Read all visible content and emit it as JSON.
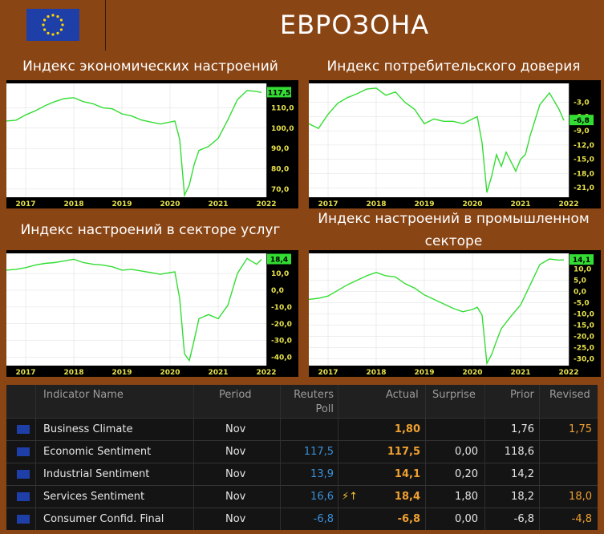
{
  "header": {
    "title": "ЕВРОЗОНА",
    "flag_icon": "eu-flag-icon",
    "flag_color": "#1f3fa8",
    "star_color": "#ffd700"
  },
  "panels": [
    {
      "title": "Индекс экономических настроений",
      "last_value": "117,5",
      "ticks": [
        "110,0",
        "100,0",
        "90,0",
        "80,0",
        "70,0"
      ]
    },
    {
      "title": "Индекс потребительского доверия",
      "last_value": "-6,8",
      "ticks": [
        "-3,0",
        "-6,0",
        "-9,0",
        "-12,0",
        "-15,0",
        "-18,0",
        "-21,0"
      ]
    },
    {
      "title": "Индекс настроений в секторе услуг",
      "last_value": "18,4",
      "ticks": [
        "10,0",
        "0,0",
        "-10,0",
        "-20,0",
        "-30,0",
        "-40,0"
      ]
    },
    {
      "title": "Индекс настроений в промышленном секторе",
      "last_value": "14,1",
      "ticks": [
        "10,0",
        "5,0",
        "0,0",
        "-5,0",
        "-10,0",
        "-15,0",
        "-20,0",
        "-25,0",
        "-30,0"
      ]
    }
  ],
  "chart_data": [
    {
      "type": "line",
      "title": "Индекс экономических настроений",
      "x": [
        2016.6,
        2016.8,
        2017.0,
        2017.2,
        2017.4,
        2017.6,
        2017.8,
        2018.0,
        2018.2,
        2018.4,
        2018.6,
        2018.8,
        2019.0,
        2019.2,
        2019.4,
        2019.6,
        2019.8,
        2020.0,
        2020.1,
        2020.2,
        2020.3,
        2020.4,
        2020.5,
        2020.6,
        2020.8,
        2021.0,
        2021.2,
        2021.4,
        2021.6,
        2021.8,
        2021.9
      ],
      "y": [
        103.5,
        103.9,
        106.5,
        108.5,
        111.0,
        113.0,
        114.5,
        115.0,
        113.0,
        112.0,
        110.0,
        109.5,
        107.0,
        106.0,
        104.0,
        103.0,
        102.0,
        103.0,
        103.5,
        94.5,
        67.0,
        72.0,
        82.0,
        89.0,
        91.0,
        95.0,
        104.0,
        114.0,
        118.5,
        118.0,
        117.5
      ],
      "ylim": [
        66,
        122
      ],
      "xlim": [
        2016.6,
        2022.0
      ],
      "x_ticks": [
        2017,
        2018,
        2019,
        2020,
        2021,
        2022
      ]
    },
    {
      "type": "line",
      "title": "Индекс потребительского доверия",
      "x": [
        2016.6,
        2016.8,
        2017.0,
        2017.2,
        2017.4,
        2017.6,
        2017.8,
        2018.0,
        2018.2,
        2018.4,
        2018.6,
        2018.8,
        2019.0,
        2019.2,
        2019.4,
        2019.6,
        2019.8,
        2020.0,
        2020.1,
        2020.2,
        2020.3,
        2020.4,
        2020.5,
        2020.6,
        2020.7,
        2020.8,
        2020.9,
        2021.0,
        2021.1,
        2021.2,
        2021.4,
        2021.6,
        2021.8,
        2021.9
      ],
      "y": [
        -7.5,
        -8.5,
        -5.5,
        -3.2,
        -2.0,
        -1.2,
        -0.2,
        0.0,
        -1.5,
        -0.8,
        -3.0,
        -4.5,
        -7.5,
        -6.5,
        -7.0,
        -7.0,
        -7.5,
        -6.5,
        -6.0,
        -11.5,
        -22.0,
        -18.5,
        -14.0,
        -16.5,
        -13.5,
        -15.5,
        -17.5,
        -15.0,
        -14.0,
        -10.0,
        -3.5,
        -1.0,
        -4.5,
        -6.8
      ],
      "ylim": [
        -23,
        1
      ],
      "xlim": [
        2016.6,
        2022.0
      ],
      "x_ticks": [
        2017,
        2018,
        2019,
        2020,
        2021,
        2022
      ]
    },
    {
      "type": "line",
      "title": "Индекс настроений в секторе услуг",
      "x": [
        2016.6,
        2016.8,
        2017.0,
        2017.2,
        2017.4,
        2017.6,
        2017.8,
        2018.0,
        2018.2,
        2018.4,
        2018.6,
        2018.8,
        2019.0,
        2019.2,
        2019.4,
        2019.6,
        2019.8,
        2020.0,
        2020.1,
        2020.2,
        2020.3,
        2020.4,
        2020.5,
        2020.6,
        2020.8,
        2021.0,
        2021.2,
        2021.4,
        2021.6,
        2021.8,
        2021.9
      ],
      "y": [
        12.0,
        12.5,
        13.5,
        15.0,
        16.0,
        16.5,
        17.5,
        18.5,
        16.5,
        15.5,
        15.0,
        14.0,
        12.0,
        12.5,
        11.5,
        10.5,
        9.5,
        10.5,
        11.0,
        -5.0,
        -38.0,
        -42.0,
        -30.0,
        -17.0,
        -14.5,
        -17.0,
        -9.0,
        10.0,
        19.0,
        15.5,
        18.4
      ],
      "ylim": [
        -45,
        22
      ],
      "xlim": [
        2016.6,
        2022.0
      ],
      "x_ticks": [
        2017,
        2018,
        2019,
        2020,
        2021,
        2022
      ]
    },
    {
      "type": "line",
      "title": "Индекс настроений в промышленном секторе",
      "x": [
        2016.6,
        2016.8,
        2017.0,
        2017.2,
        2017.4,
        2017.6,
        2017.8,
        2018.0,
        2018.2,
        2018.4,
        2018.6,
        2018.8,
        2019.0,
        2019.2,
        2019.4,
        2019.6,
        2019.8,
        2020.0,
        2020.1,
        2020.2,
        2020.3,
        2020.4,
        2020.5,
        2020.6,
        2020.8,
        2021.0,
        2021.2,
        2021.4,
        2021.6,
        2021.8,
        2021.9
      ],
      "y": [
        -3.5,
        -3.0,
        -2.0,
        0.5,
        3.0,
        5.0,
        7.0,
        8.5,
        7.0,
        6.5,
        3.5,
        1.5,
        -1.5,
        -3.5,
        -5.5,
        -7.5,
        -9.0,
        -8.0,
        -7.0,
        -10.5,
        -32.0,
        -28.0,
        -22.0,
        -16.5,
        -11.0,
        -6.0,
        3.0,
        12.0,
        14.5,
        14.0,
        14.1
      ],
      "ylim": [
        -33,
        17
      ],
      "xlim": [
        2016.6,
        2022.0
      ],
      "x_ticks": [
        2017,
        2018,
        2019,
        2020,
        2021,
        2022
      ]
    }
  ],
  "table": {
    "headers": [
      "Indicator Name",
      "Period",
      "Reuters Poll",
      "Actual",
      "Surprise",
      "Prior",
      "Revised"
    ],
    "rows": [
      {
        "name": "Business Climate",
        "period": "Nov",
        "poll": "",
        "actual": "1,80",
        "surprise": "",
        "prior": "1,76",
        "revised": "1,75",
        "flag": ""
      },
      {
        "name": "Economic Sentiment",
        "period": "Nov",
        "poll": "117,5",
        "actual": "117,5",
        "surprise": "0,00",
        "prior": "118,6",
        "revised": "",
        "flag": ""
      },
      {
        "name": "Industrial Sentiment",
        "period": "Nov",
        "poll": "13,9",
        "actual": "14,1",
        "surprise": "0,20",
        "prior": "14,2",
        "revised": "",
        "flag": ""
      },
      {
        "name": "Services Sentiment",
        "period": "Nov",
        "poll": "16,6",
        "actual": "18,4",
        "surprise": "1,80",
        "prior": "18,2",
        "revised": "18,0",
        "flag": "⚡↑"
      },
      {
        "name": "Consumer Confid. Final",
        "period": "Nov",
        "poll": "-6,8",
        "actual": "-6,8",
        "surprise": "0,00",
        "prior": "-6,8",
        "revised": "-4,8",
        "flag": ""
      }
    ],
    "colors": {
      "poll": "#3b8fd9",
      "actual": "#f0a030",
      "revised": "#f0a030",
      "text": "#e6e6e6",
      "line": "#33dd33"
    }
  }
}
